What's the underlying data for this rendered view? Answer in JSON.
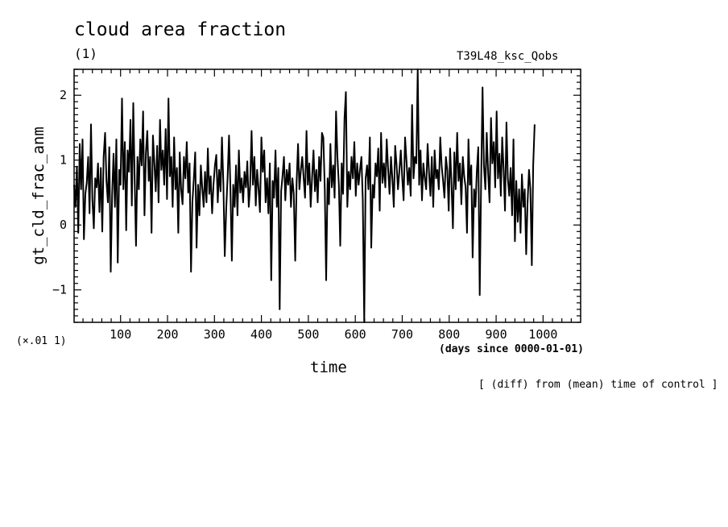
{
  "header": {
    "title": "cloud area fraction",
    "units": "(1)",
    "run_name": "T39L48_ksc_Qobs"
  },
  "footer": {
    "scale_note": "(×.01 1)",
    "x_units": "(days since 0000-01-01)",
    "diff_note": "[ (diff) from (mean) time of control ]"
  },
  "chart_data": {
    "type": "line",
    "title": "cloud area fraction",
    "xlabel": "time",
    "ylabel": "gt_cld_frac_anm",
    "xlim": [
      1,
      1080
    ],
    "ylim": [
      -1.5,
      2.4
    ],
    "x_ticks": [
      100,
      200,
      300,
      400,
      500,
      600,
      700,
      800,
      900,
      1000
    ],
    "x_tick_labels": [
      "100",
      "200",
      "300",
      "400",
      "500",
      "600",
      "700",
      "800",
      "900",
      "1000"
    ],
    "y_ticks": [
      -1,
      0,
      1,
      2
    ],
    "y_tick_labels": [
      "−1",
      "0",
      "1",
      "2"
    ],
    "grid": false,
    "series": [
      {
        "x_start": 1,
        "x_step": 3,
        "values": [
          0.62,
          0.28,
          0.9,
          -0.12,
          1.25,
          0.55,
          1.32,
          -0.22,
          0.48,
          0.65,
          1.05,
          0.18,
          1.55,
          0.4,
          -0.05,
          0.72,
          0.58,
          0.95,
          0.2,
          0.88,
          -0.1,
          1.05,
          1.42,
          0.68,
          0.35,
          1.2,
          -0.72,
          0.45,
          1.1,
          0.28,
          1.32,
          -0.58,
          0.85,
          0.62,
          1.95,
          0.55,
          1.28,
          -0.08,
          1.15,
          0.82,
          1.62,
          0.3,
          1.88,
          0.72,
          -0.32,
          1.05,
          0.55,
          1.32,
          0.92,
          1.75,
          0.15,
          1.12,
          1.45,
          0.68,
          1.05,
          -0.12,
          1.38,
          0.95,
          0.52,
          1.22,
          0.35,
          1.62,
          0.85,
          1.15,
          0.62,
          1.48,
          0.4,
          1.95,
          0.75,
          1.05,
          0.28,
          1.35,
          0.55,
          0.88,
          -0.12,
          1.12,
          0.55,
          0.32,
          1.05,
          0.72,
          1.28,
          0.5,
          0.95,
          -0.72,
          0.35,
          0.72,
          1.12,
          -0.35,
          0.62,
          0.15,
          0.92,
          0.58,
          0.28,
          0.82,
          0.35,
          1.18,
          0.48,
          0.75,
          0.18,
          0.62,
          0.92,
          1.08,
          0.35,
          0.85,
          0.52,
          1.35,
          0.62,
          -0.48,
          0.25,
          0.72,
          1.38,
          0.58,
          -0.55,
          0.62,
          0.28,
          0.92,
          0.15,
          1.15,
          0.5,
          0.72,
          0.35,
          0.82,
          0.58,
          0.98,
          0.28,
          0.6,
          1.45,
          0.62,
          1.05,
          0.3,
          0.85,
          0.55,
          0.2,
          1.35,
          0.82,
          1.15,
          0.35,
          0.72,
          0.18,
          0.95,
          -0.85,
          0.68,
          0.42,
          1.15,
          0.28,
          0.88,
          -1.3,
          0.52,
          0.75,
          1.05,
          0.38,
          0.85,
          0.62,
          0.95,
          0.28,
          0.72,
          0.48,
          -0.55,
          0.65,
          1.25,
          0.55,
          0.85,
          1.05,
          0.72,
          0.42,
          1.45,
          0.62,
          0.95,
          0.28,
          0.75,
          1.15,
          0.52,
          0.85,
          0.35,
          1.05,
          0.68,
          1.42,
          1.35,
          0.55,
          -0.85,
          0.72,
          0.32,
          1.25,
          0.58,
          0.92,
          0.42,
          1.75,
          1.05,
          0.62,
          -0.32,
          0.95,
          0.48,
          1.65,
          2.05,
          0.28,
          0.82,
          0.55,
          1.05,
          0.72,
          1.28,
          0.45,
          0.95,
          0.62,
          0.85,
          1.05,
          0.38,
          -1.6,
          0.72,
          0.92,
          0.55,
          1.35,
          -0.35,
          0.62,
          0.42,
          0.95,
          0.75,
          1.18,
          0.22,
          1.42,
          0.65,
          0.95,
          0.58,
          1.32,
          0.85,
          0.48,
          1.05,
          0.72,
          0.28,
          1.22,
          0.92,
          0.55,
          0.85,
          1.15,
          0.72,
          0.38,
          1.35,
          1.0,
          0.62,
          0.88,
          0.45,
          1.85,
          0.72,
          1.05,
          0.95,
          2.55,
          0.62,
          1.15,
          0.38,
          0.95,
          0.72,
          0.55,
          1.25,
          0.82,
          0.45,
          1.05,
          0.28,
          1.15,
          0.72,
          0.85,
          0.55,
          1.35,
          0.92,
          0.68,
          0.42,
          1.05,
          0.85,
          0.22,
          1.18,
          0.62,
          -0.05,
          1.12,
          0.55,
          1.42,
          0.68,
          0.95,
          0.32,
          1.05,
          0.75,
          0.58,
          -0.12,
          1.32,
          0.62,
          0.92,
          -0.5,
          0.55,
          0.28,
          0.85,
          1.2,
          -1.08,
          0.62,
          2.12,
          0.92,
          0.55,
          1.42,
          0.78,
          0.35,
          1.65,
          0.95,
          1.28,
          0.58,
          1.75,
          0.72,
          1.1,
          0.45,
          1.35,
          0.85,
          0.22,
          1.58,
          0.72,
          0.45,
          0.88,
          0.15,
          1.32,
          -0.25,
          0.68,
          0.05,
          0.55,
          -0.12,
          0.78,
          0.28,
          0.55,
          -0.45,
          0.35,
          0.85,
          0.55,
          -0.62,
          0.92,
          1.55
        ]
      }
    ]
  }
}
